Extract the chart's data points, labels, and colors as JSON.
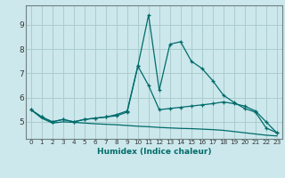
{
  "xlabel": "Humidex (Indice chaleur)",
  "background_color": "#cce8ec",
  "grid_color": "#aacccc",
  "line_color": "#006b6b",
  "x": [
    0,
    1,
    2,
    3,
    4,
    5,
    6,
    7,
    8,
    9,
    10,
    11,
    12,
    13,
    14,
    15,
    16,
    17,
    18,
    19,
    20,
    21,
    22,
    23
  ],
  "line1": [
    5.5,
    5.2,
    5.0,
    5.1,
    5.0,
    5.1,
    5.15,
    5.2,
    5.3,
    5.45,
    7.3,
    9.4,
    6.3,
    8.2,
    8.3,
    7.5,
    7.2,
    6.7,
    6.1,
    5.8,
    5.55,
    5.4,
    4.75,
    4.55
  ],
  "line2": [
    5.5,
    5.2,
    5.0,
    5.1,
    5.0,
    5.1,
    5.15,
    5.2,
    5.25,
    5.4,
    7.3,
    6.5,
    5.5,
    5.55,
    5.6,
    5.65,
    5.7,
    5.75,
    5.82,
    5.75,
    5.65,
    5.45,
    5.0,
    4.55
  ],
  "line3": [
    5.5,
    5.15,
    4.95,
    5.0,
    4.98,
    4.95,
    4.92,
    4.9,
    4.88,
    4.85,
    4.82,
    4.8,
    4.77,
    4.75,
    4.73,
    4.72,
    4.7,
    4.68,
    4.65,
    4.6,
    4.55,
    4.5,
    4.45,
    4.42
  ],
  "ylim": [
    4.3,
    9.8
  ],
  "yticks": [
    5,
    6,
    7,
    8,
    9
  ],
  "xticks": [
    0,
    1,
    2,
    3,
    4,
    5,
    6,
    7,
    8,
    9,
    10,
    11,
    12,
    13,
    14,
    15,
    16,
    17,
    18,
    19,
    20,
    21,
    22,
    23
  ]
}
